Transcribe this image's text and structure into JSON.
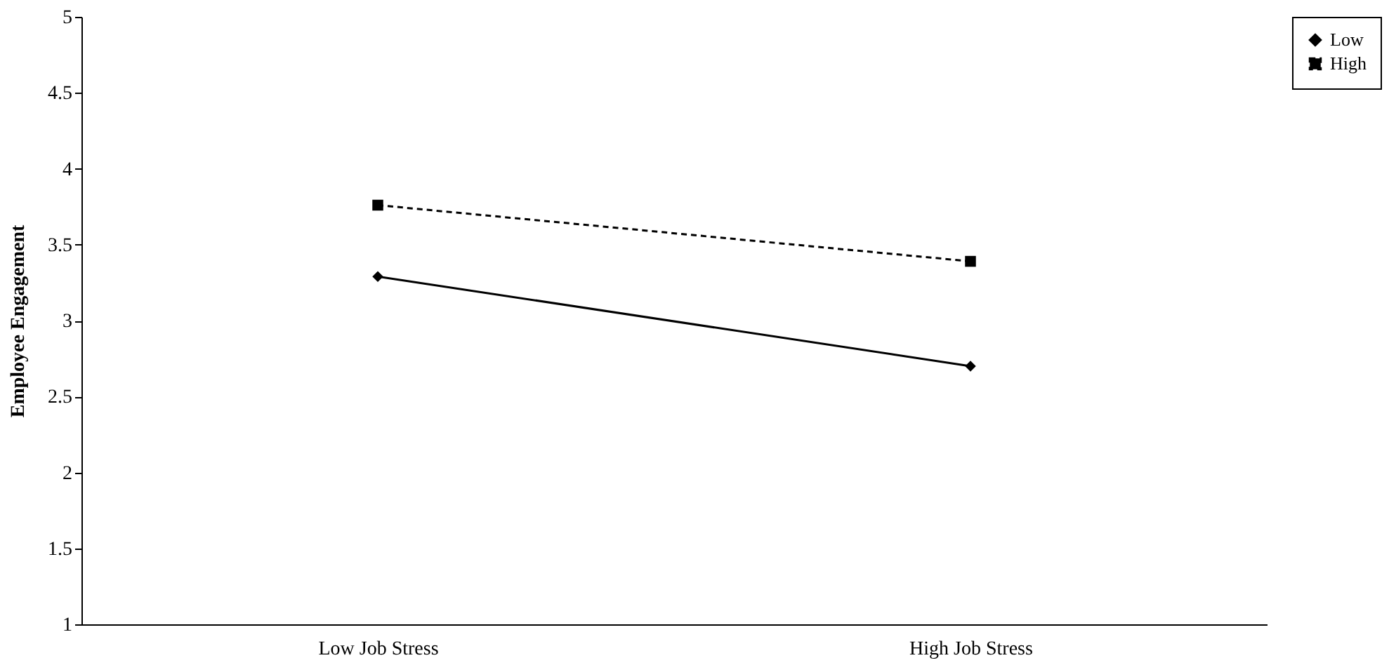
{
  "chart_data": {
    "type": "line",
    "ylabel": "Employee Engagement",
    "categories": [
      "Low Job Stress",
      "High Job Stress"
    ],
    "series": [
      {
        "name": "Low",
        "color": "#000000",
        "values": [
          3.29,
          2.7
        ],
        "marker": "diamond",
        "line_style": "solid"
      },
      {
        "name": "High",
        "color": "#000000",
        "values": [
          3.76,
          3.39
        ],
        "marker": "square",
        "line_style": "dashed"
      }
    ],
    "ylim": [
      1,
      5
    ],
    "yticks": [
      1,
      1.5,
      2,
      2.5,
      3,
      3.5,
      4,
      4.5,
      5
    ],
    "grid": false,
    "legend": "right"
  }
}
